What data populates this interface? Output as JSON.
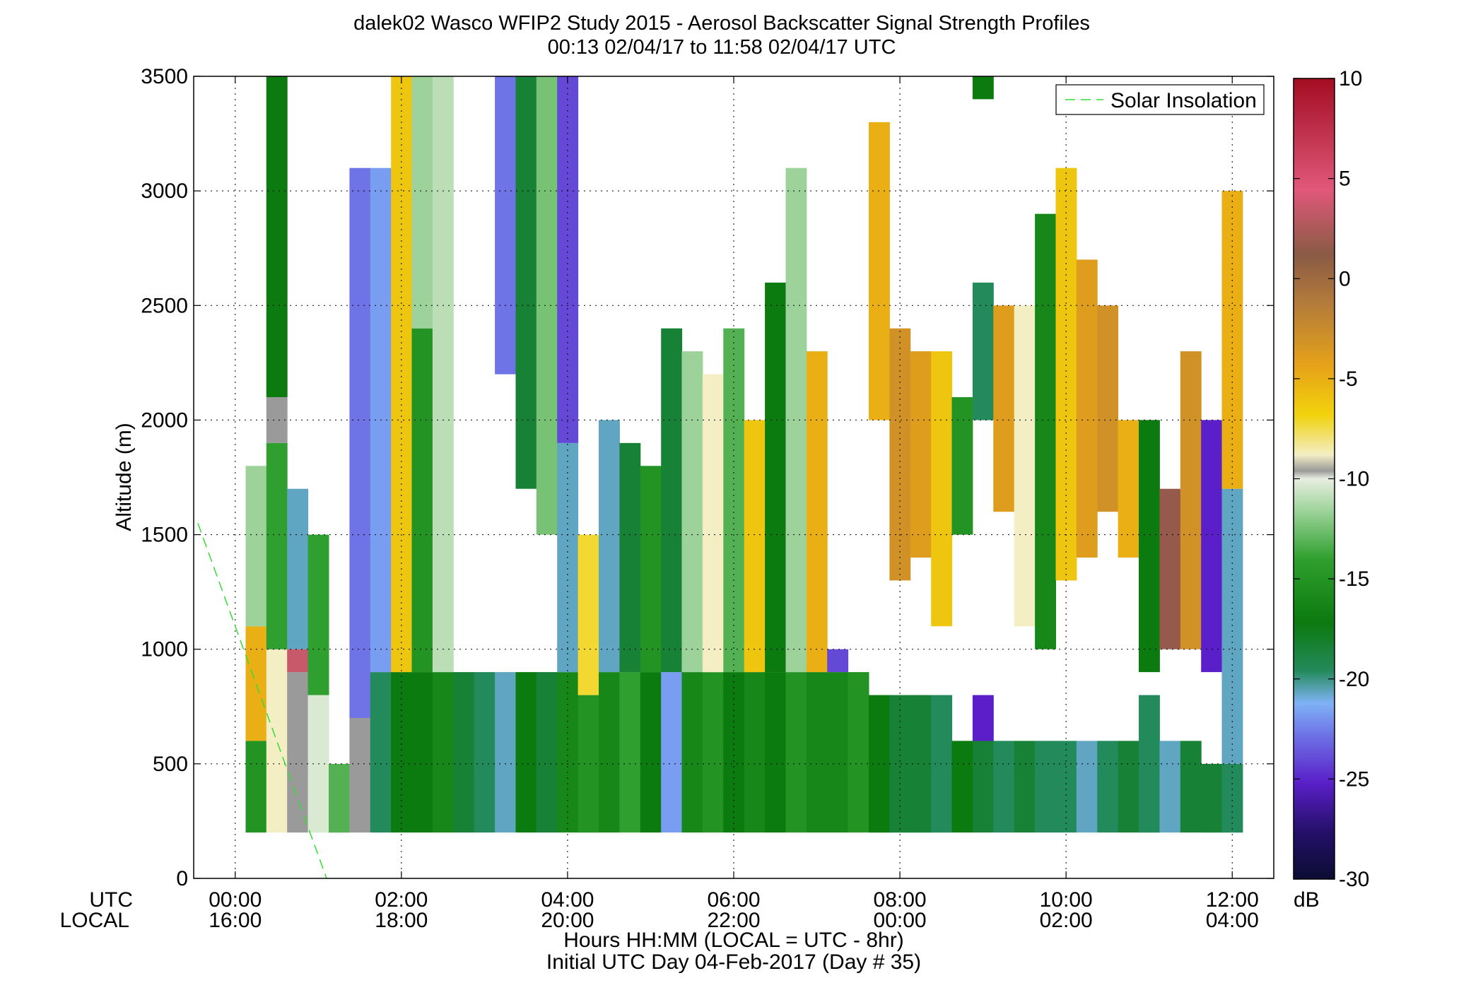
{
  "chart_data": {
    "type": "heatmap",
    "title": "dalek02 Wasco WFIP2 Study 2015 - Aerosol Backscatter Signal Strength Profiles",
    "subtitle": "00:13 02/04/17 to 11:58 02/04/17  UTC",
    "ylabel": "Altitude (m)",
    "xlabel": "Hours HH:MM  (LOCAL = UTC - 8hr)",
    "xlabel2": "Initial UTC Day 04-Feb-2017 (Day # 35)",
    "x_row_labels": [
      "UTC",
      "LOCAL"
    ],
    "x_ticks_utc": [
      "00:00",
      "02:00",
      "04:00",
      "06:00",
      "08:00",
      "10:00",
      "12:00"
    ],
    "x_ticks_local": [
      "16:00",
      "18:00",
      "20:00",
      "22:00",
      "00:00",
      "02:00",
      "04:00"
    ],
    "x_tick_hours": [
      0,
      2,
      4,
      6,
      8,
      10,
      12
    ],
    "xlim_hours": [
      -0.5,
      12.5
    ],
    "y_ticks": [
      0,
      500,
      1000,
      1500,
      2000,
      2500,
      3000,
      3500
    ],
    "ylim": [
      0,
      3500
    ],
    "grid": true,
    "colorbar": {
      "unit": "dB",
      "ticks": [
        10,
        5,
        0,
        -5,
        -10,
        -15,
        -20,
        -25,
        -30
      ],
      "range": [
        -30,
        10
      ]
    },
    "legend": {
      "entries": [
        "Solar Insolation"
      ],
      "placement": "top-right"
    },
    "solar_insolation_line": {
      "from_hours": -0.45,
      "from_alt": 1550,
      "to_hours": 1.1,
      "to_alt": 0
    },
    "cells": {
      "hour_step": 0.25,
      "alt_step": 100,
      "first_hour": 0.25,
      "columns": [
        {
          "h": 0.25,
          "segments": [
            [
              200,
              600,
              -17
            ],
            [
              600,
              1100,
              -5
            ],
            [
              1100,
              1800,
              -13
            ]
          ]
        },
        {
          "h": 0.5,
          "segments": [
            [
              200,
              1000,
              -9
            ],
            [
              1000,
              1900,
              -16
            ],
            [
              1900,
              2100,
              -10
            ],
            [
              2100,
              3500,
              -19
            ]
          ]
        },
        {
          "h": 0.75,
          "segments": [
            [
              200,
              900,
              -10
            ],
            [
              900,
              1000,
              4
            ],
            [
              1000,
              1700,
              -22
            ]
          ]
        },
        {
          "h": 1.0,
          "segments": [
            [
              200,
              800,
              -11
            ],
            [
              800,
              1500,
              -16
            ]
          ]
        },
        {
          "h": 1.25,
          "segments": [
            [
              200,
              500,
              -15
            ]
          ]
        },
        {
          "h": 1.5,
          "segments": [
            [
              200,
              700,
              -10
            ],
            [
              700,
              3100,
              -24
            ]
          ]
        },
        {
          "h": 1.75,
          "segments": [
            [
              200,
              900,
              -21
            ],
            [
              900,
              3100,
              -23
            ]
          ]
        },
        {
          "h": 2.0,
          "segments": [
            [
              200,
              900,
              -19
            ],
            [
              900,
              3500,
              -6
            ]
          ]
        },
        {
          "h": 2.25,
          "segments": [
            [
              200,
              900,
              -19
            ],
            [
              900,
              2400,
              -17
            ],
            [
              2400,
              3500,
              -13
            ]
          ]
        },
        {
          "h": 2.5,
          "segments": [
            [
              200,
              900,
              -18
            ],
            [
              900,
              3500,
              -12
            ]
          ]
        },
        {
          "h": 2.75,
          "segments": [
            [
              200,
              900,
              -20
            ]
          ]
        },
        {
          "h": 3.0,
          "segments": [
            [
              200,
              900,
              -21
            ]
          ]
        },
        {
          "h": 3.25,
          "segments": [
            [
              200,
              900,
              -22
            ],
            [
              2200,
              3500,
              -24
            ]
          ]
        },
        {
          "h": 3.5,
          "segments": [
            [
              200,
              900,
              -19
            ],
            [
              1700,
              3500,
              -20
            ]
          ]
        },
        {
          "h": 3.75,
          "segments": [
            [
              200,
              900,
              -20
            ],
            [
              1500,
              3500,
              -14
            ]
          ]
        },
        {
          "h": 4.0,
          "segments": [
            [
              200,
              900,
              -18
            ],
            [
              900,
              1900,
              -22
            ],
            [
              1900,
              3500,
              -25
            ]
          ]
        },
        {
          "h": 4.25,
          "segments": [
            [
              200,
              800,
              -17
            ],
            [
              800,
              1500,
              -7
            ]
          ]
        },
        {
          "h": 4.5,
          "segments": [
            [
              200,
              900,
              -18
            ],
            [
              900,
              2000,
              -22
            ]
          ]
        },
        {
          "h": 4.75,
          "segments": [
            [
              200,
              900,
              -16
            ],
            [
              900,
              1900,
              -20
            ]
          ]
        },
        {
          "h": 5.0,
          "segments": [
            [
              200,
              900,
              -19
            ],
            [
              900,
              1800,
              -17
            ]
          ]
        },
        {
          "h": 5.25,
          "segments": [
            [
              200,
              900,
              -23
            ],
            [
              900,
              2400,
              -20
            ]
          ]
        },
        {
          "h": 5.5,
          "segments": [
            [
              200,
              900,
              -18
            ],
            [
              900,
              2300,
              -13
            ]
          ]
        },
        {
          "h": 5.75,
          "segments": [
            [
              200,
              900,
              -17
            ],
            [
              900,
              2200,
              -9
            ]
          ]
        },
        {
          "h": 6.0,
          "segments": [
            [
              200,
              900,
              -19
            ],
            [
              900,
              2400,
              -15
            ]
          ]
        },
        {
          "h": 6.25,
          "segments": [
            [
              200,
              900,
              -18
            ],
            [
              900,
              2000,
              -6
            ]
          ]
        },
        {
          "h": 6.5,
          "segments": [
            [
              200,
              900,
              -19
            ],
            [
              900,
              2600,
              -19
            ]
          ]
        },
        {
          "h": 6.75,
          "segments": [
            [
              200,
              900,
              -17
            ],
            [
              900,
              3100,
              -13
            ]
          ]
        },
        {
          "h": 7.0,
          "segments": [
            [
              200,
              900,
              -18
            ],
            [
              900,
              2300,
              -5
            ]
          ]
        },
        {
          "h": 7.25,
          "segments": [
            [
              200,
              900,
              -18
            ],
            [
              900,
              900,
              -25
            ]
          ]
        },
        {
          "h": 7.5,
          "segments": [
            [
              200,
              900,
              -17
            ]
          ]
        },
        {
          "h": 7.75,
          "segments": [
            [
              200,
              800,
              -19
            ],
            [
              2000,
              3300,
              -5
            ]
          ]
        },
        {
          "h": 8.0,
          "segments": [
            [
              200,
              800,
              -20
            ],
            [
              1300,
              2400,
              -3
            ]
          ]
        },
        {
          "h": 8.25,
          "segments": [
            [
              200,
              800,
              -20
            ],
            [
              1400,
              2300,
              -4
            ]
          ]
        },
        {
          "h": 8.5,
          "segments": [
            [
              200,
              800,
              -21
            ],
            [
              1100,
              2300,
              -6
            ]
          ]
        },
        {
          "h": 8.75,
          "segments": [
            [
              200,
              600,
              -19
            ],
            [
              1500,
              2100,
              -17
            ]
          ]
        },
        {
          "h": 9.0,
          "segments": [
            [
              200,
              600,
              -20
            ],
            [
              600,
              800,
              -26
            ],
            [
              2000,
              2600,
              -21
            ],
            [
              3400,
              3500,
              -19
            ]
          ]
        },
        {
          "h": 9.25,
          "segments": [
            [
              200,
              600,
              -21
            ],
            [
              1600,
              2500,
              -4
            ]
          ]
        },
        {
          "h": 9.5,
          "segments": [
            [
              200,
              600,
              -20
            ],
            [
              1100,
              2500,
              -9
            ]
          ]
        },
        {
          "h": 9.75,
          "segments": [
            [
              200,
              600,
              -21
            ],
            [
              1000,
              2900,
              -18
            ]
          ]
        },
        {
          "h": 10.0,
          "segments": [
            [
              200,
              600,
              -21
            ],
            [
              1300,
              3100,
              -6
            ]
          ]
        },
        {
          "h": 10.25,
          "segments": [
            [
              200,
              600,
              -22
            ],
            [
              1400,
              2700,
              -4
            ]
          ]
        },
        {
          "h": 10.5,
          "segments": [
            [
              200,
              600,
              -21
            ],
            [
              1600,
              2500,
              -3
            ]
          ]
        },
        {
          "h": 10.75,
          "segments": [
            [
              200,
              600,
              -20
            ],
            [
              1400,
              2000,
              -5
            ]
          ]
        },
        {
          "h": 11.0,
          "segments": [
            [
              200,
              800,
              -21
            ],
            [
              900,
              2000,
              -19
            ]
          ]
        },
        {
          "h": 11.25,
          "segments": [
            [
              200,
              600,
              -22
            ],
            [
              1000,
              1700,
              2
            ]
          ]
        },
        {
          "h": 11.5,
          "segments": [
            [
              200,
              600,
              -20
            ],
            [
              1000,
              2300,
              -3
            ]
          ]
        },
        {
          "h": 11.75,
          "segments": [
            [
              200,
              500,
              -20
            ],
            [
              900,
              2000,
              -26
            ]
          ]
        },
        {
          "h": 12.0,
          "segments": [
            [
              200,
              500,
              -21
            ],
            [
              500,
              1700,
              -22
            ],
            [
              1700,
              3000,
              -5
            ]
          ]
        }
      ]
    }
  },
  "legend_label": "Solar Insolation",
  "colorbar_unit": "dB"
}
